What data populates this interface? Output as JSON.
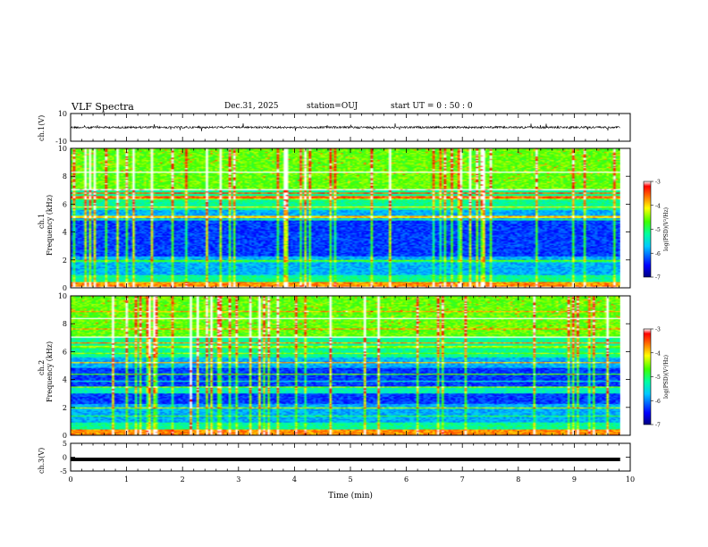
{
  "header": {
    "title": "VLF Spectra",
    "date": "Dec.31, 2025",
    "station": "station=OUJ",
    "start": "start  UT =   0 : 50 : 0"
  },
  "chart_data": {
    "type": "heatmap",
    "title": "VLF Spectra",
    "xlabel": "Time  (min)",
    "xlim": [
      0,
      10
    ],
    "xticks": [
      "0",
      "1",
      "2",
      "3",
      "4",
      "5",
      "6",
      "7",
      "8",
      "9",
      "10"
    ],
    "data_end_min": 9.82,
    "panels": [
      {
        "id": "ch1-waveform",
        "type": "line",
        "ylabel": "ch.1(V)",
        "ylim": [
          -10,
          10
        ],
        "yticks": [
          "10",
          "-10"
        ],
        "baseline_v": 0,
        "noise_amplitude_v": 1.5
      },
      {
        "id": "ch1-spectrogram",
        "type": "heatmap",
        "ylabel_line1": "ch.1",
        "ylabel_line2": "Frequency  (kHz)",
        "ylim": [
          0,
          10
        ],
        "yticks": [
          "0",
          "2",
          "4",
          "6",
          "8",
          "10"
        ],
        "colorbar": {
          "label": "log(PSD)(V²/Hz)",
          "range": [
            -7,
            -3
          ],
          "ticks": [
            "-3",
            "-4",
            "-5",
            "-6",
            "-7"
          ]
        }
      },
      {
        "id": "ch2-spectrogram",
        "type": "heatmap",
        "ylabel_line1": "ch.2",
        "ylabel_line2": "Frequency  (kHz)",
        "ylim": [
          0,
          10
        ],
        "yticks": [
          "0",
          "2",
          "4",
          "6",
          "8",
          "10"
        ],
        "colorbar": {
          "label": "log(PSD)(V²/Hz)",
          "range": [
            -7,
            -3
          ],
          "ticks": [
            "-3",
            "-4",
            "-5",
            "-6",
            "-7"
          ]
        }
      },
      {
        "id": "ch3-waveform",
        "type": "line",
        "ylabel": "ch.3(V)",
        "ylim": [
          -5,
          5
        ],
        "yticks": [
          "5",
          "0",
          "-5"
        ],
        "baseline_v": -0.8
      }
    ]
  }
}
